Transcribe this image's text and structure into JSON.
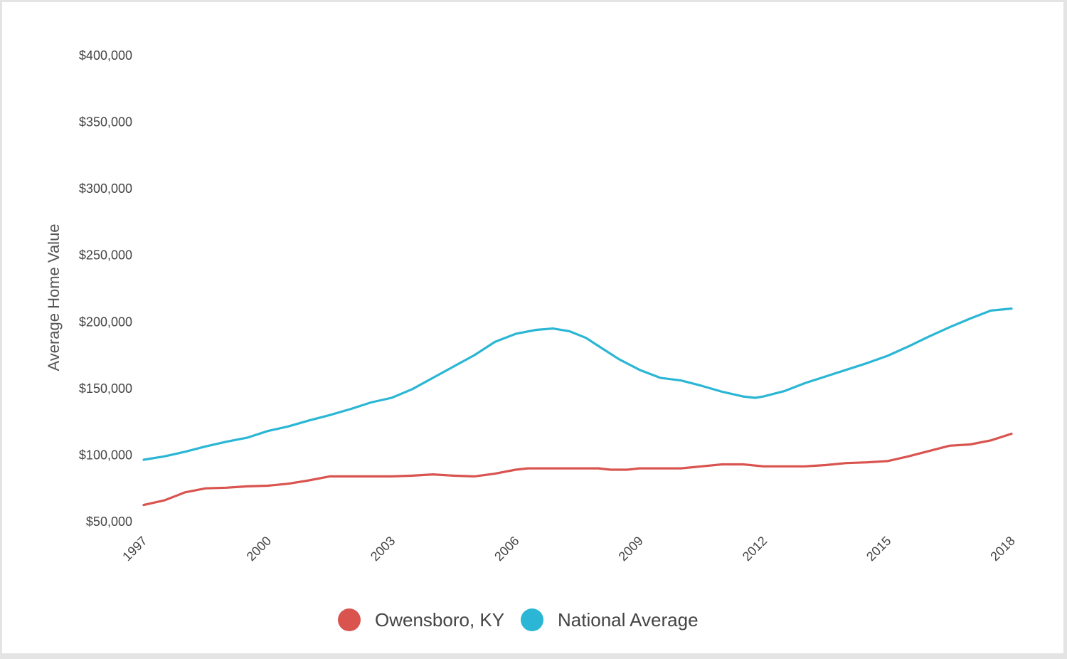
{
  "chart_data": {
    "type": "line",
    "xlabel": "",
    "ylabel": "Average Home Value",
    "xlim": [
      1997,
      2018
    ],
    "ylim": [
      50000,
      400000
    ],
    "x_ticks": [
      1997,
      2000,
      2003,
      2006,
      2009,
      2012,
      2015,
      2018
    ],
    "x_tick_labels": [
      "1997",
      "2000",
      "2003",
      "2006",
      "2009",
      "2012",
      "2015",
      "2018"
    ],
    "y_ticks": [
      50000,
      100000,
      150000,
      200000,
      250000,
      300000,
      350000,
      400000
    ],
    "y_tick_labels": [
      "$50,000",
      "$100,000",
      "$150,000",
      "$200,000",
      "$250,000",
      "$300,000",
      "$350,000",
      "$400,000"
    ],
    "grid": false,
    "legend_position": "bottom-center",
    "series": [
      {
        "name": "Owensboro, KY",
        "color": "#d9534f",
        "points": [
          [
            1997.0,
            62500
          ],
          [
            1997.5,
            66000
          ],
          [
            1998.0,
            72000
          ],
          [
            1998.5,
            75000
          ],
          [
            1999.0,
            75500
          ],
          [
            1999.5,
            76500
          ],
          [
            2000.0,
            77000
          ],
          [
            2000.5,
            78500
          ],
          [
            2001.0,
            81000
          ],
          [
            2001.5,
            84000
          ],
          [
            2002.0,
            84000
          ],
          [
            2003.0,
            84000
          ],
          [
            2003.5,
            84500
          ],
          [
            2004.0,
            85500
          ],
          [
            2004.5,
            84500
          ],
          [
            2005.0,
            84000
          ],
          [
            2005.5,
            86000
          ],
          [
            2006.0,
            89000
          ],
          [
            2006.3,
            90000
          ],
          [
            2007.0,
            90000
          ],
          [
            2008.0,
            90000
          ],
          [
            2008.3,
            89000
          ],
          [
            2008.7,
            89000
          ],
          [
            2009.0,
            90000
          ],
          [
            2010.0,
            90000
          ],
          [
            2010.5,
            91500
          ],
          [
            2011.0,
            93000
          ],
          [
            2011.5,
            93000
          ],
          [
            2012.0,
            91500
          ],
          [
            2012.5,
            91500
          ],
          [
            2013.0,
            91500
          ],
          [
            2013.5,
            92500
          ],
          [
            2014.0,
            94000
          ],
          [
            2014.5,
            94500
          ],
          [
            2015.0,
            95500
          ],
          [
            2015.5,
            99000
          ],
          [
            2016.0,
            103000
          ],
          [
            2016.5,
            107000
          ],
          [
            2017.0,
            108000
          ],
          [
            2017.5,
            111000
          ],
          [
            2018.0,
            116000
          ]
        ]
      },
      {
        "name": "National Average",
        "color": "#2ab6d4",
        "points": [
          [
            1997.0,
            96500
          ],
          [
            1997.5,
            99000
          ],
          [
            1998.0,
            102500
          ],
          [
            1998.5,
            106500
          ],
          [
            1999.0,
            110000
          ],
          [
            1999.5,
            113000
          ],
          [
            2000.0,
            118000
          ],
          [
            2000.5,
            121500
          ],
          [
            2001.0,
            126000
          ],
          [
            2001.5,
            130000
          ],
          [
            2002.0,
            134500
          ],
          [
            2002.5,
            139500
          ],
          [
            2003.0,
            143000
          ],
          [
            2003.5,
            149500
          ],
          [
            2004.0,
            158000
          ],
          [
            2004.5,
            166500
          ],
          [
            2005.0,
            175000
          ],
          [
            2005.5,
            185000
          ],
          [
            2006.0,
            191000
          ],
          [
            2006.5,
            194000
          ],
          [
            2006.9,
            195000
          ],
          [
            2007.3,
            193000
          ],
          [
            2007.7,
            188000
          ],
          [
            2008.0,
            182000
          ],
          [
            2008.5,
            172000
          ],
          [
            2009.0,
            164000
          ],
          [
            2009.5,
            158000
          ],
          [
            2010.0,
            156000
          ],
          [
            2010.5,
            152000
          ],
          [
            2011.0,
            147500
          ],
          [
            2011.5,
            144000
          ],
          [
            2011.8,
            143000
          ],
          [
            2012.0,
            144000
          ],
          [
            2012.5,
            148000
          ],
          [
            2013.0,
            154000
          ],
          [
            2013.5,
            159000
          ],
          [
            2014.0,
            164000
          ],
          [
            2014.5,
            169000
          ],
          [
            2015.0,
            174500
          ],
          [
            2015.5,
            181500
          ],
          [
            2016.0,
            189000
          ],
          [
            2016.5,
            196000
          ],
          [
            2017.0,
            202500
          ],
          [
            2017.5,
            208500
          ],
          [
            2018.0,
            210000
          ]
        ]
      }
    ]
  }
}
